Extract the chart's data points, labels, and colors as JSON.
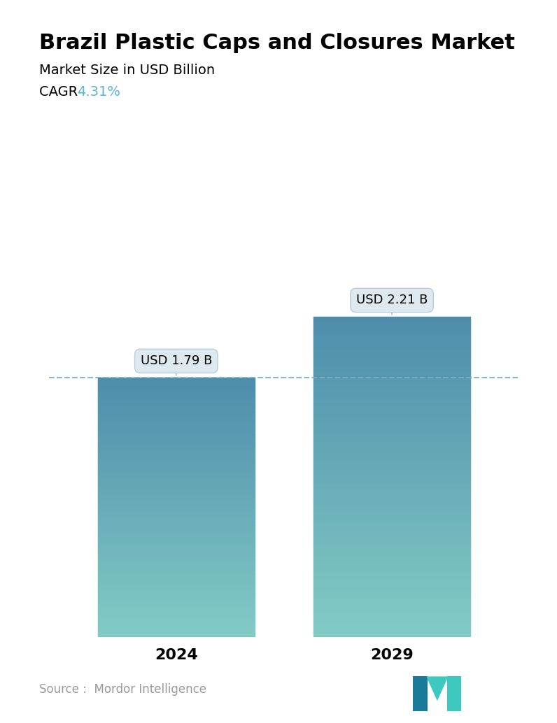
{
  "title": "Brazil Plastic Caps and Closures Market",
  "subtitle": "Market Size in USD Billion",
  "cagr_label": "CAGR ",
  "cagr_value": "4.31%",
  "cagr_color": "#5ab4d6",
  "years": [
    "2024",
    "2029"
  ],
  "values": [
    1.79,
    2.21
  ],
  "labels": [
    "USD 1.79 B",
    "USD 2.21 B"
  ],
  "bar_top_color": "#4d8dab",
  "bar_bottom_color": "#82cbc5",
  "dashed_line_color": "#7ab0c8",
  "source_text": "Source :  Mordor Intelligence",
  "background_color": "#ffffff",
  "title_fontsize": 22,
  "subtitle_fontsize": 14,
  "cagr_fontsize": 14,
  "label_fontsize": 13,
  "tick_fontsize": 16,
  "source_fontsize": 12,
  "ylim": [
    0,
    2.9
  ],
  "x_positions": [
    0.28,
    0.72
  ],
  "bar_width": 0.32
}
